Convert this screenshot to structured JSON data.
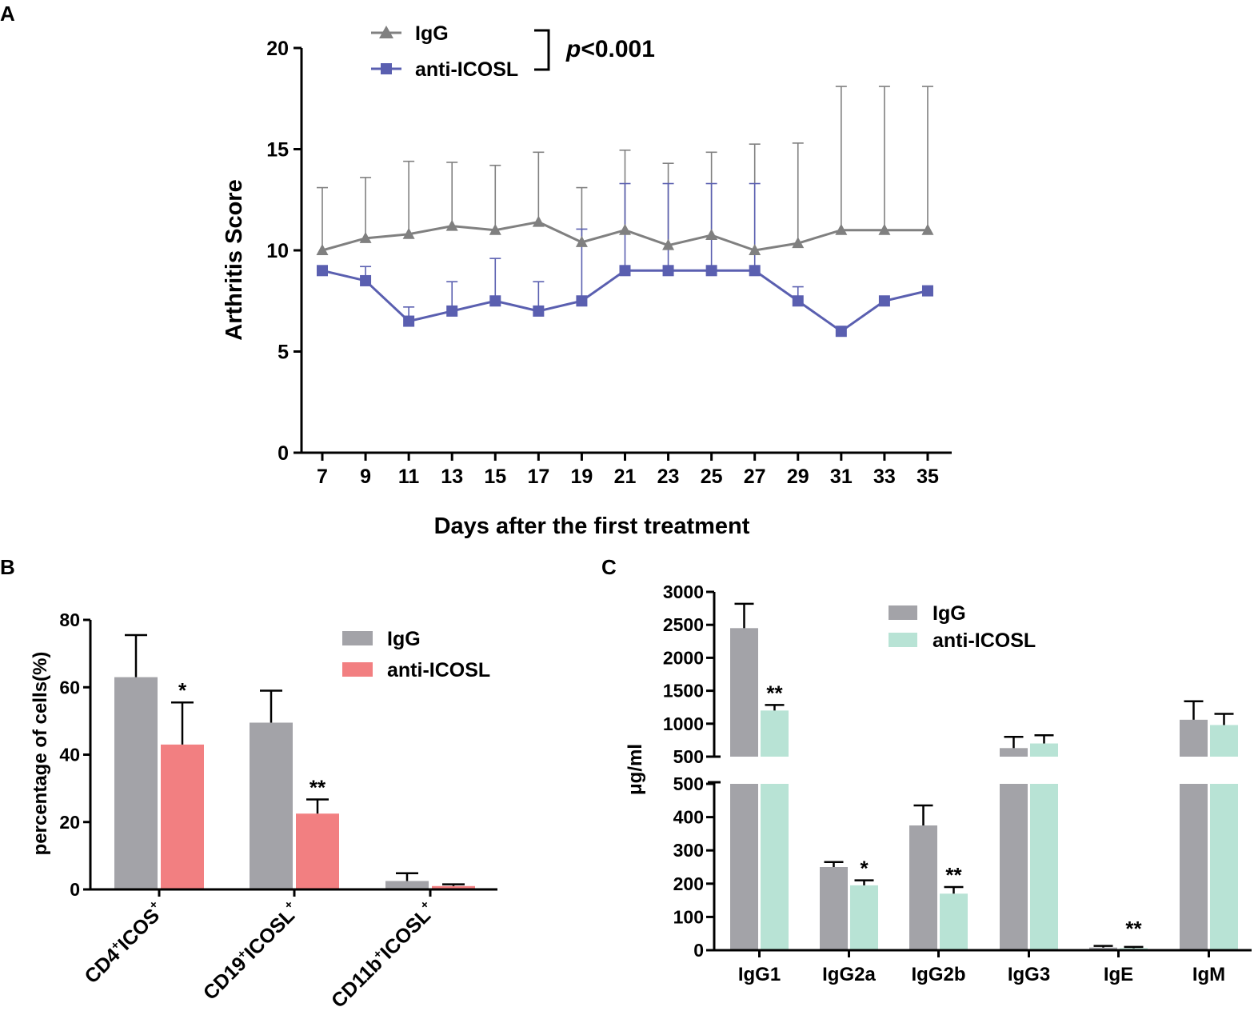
{
  "colors": {
    "igg_line": "#808080",
    "anti_line": "#5a5fb0",
    "igg_bar": "#a3a3a8",
    "anti_bar_b": "#f27f81",
    "anti_bar_c": "#b8e3d5"
  },
  "chart_data": [
    {
      "panel": "A",
      "type": "line",
      "xlabel": "Days after the first treatment",
      "ylabel": "Arthritis Score",
      "ylim": [
        0,
        20
      ],
      "yticks": [
        "0",
        "5",
        "10",
        "15",
        "20"
      ],
      "x": [
        7,
        9,
        11,
        13,
        15,
        17,
        19,
        21,
        23,
        25,
        27,
        29,
        31,
        33,
        35
      ],
      "xtick_labels": [
        "7",
        "9",
        "11",
        "13",
        "15",
        "17",
        "19",
        "21",
        "23",
        "25",
        "27",
        "29",
        "31",
        "33",
        "35"
      ],
      "annotation": "p<0.001",
      "annotation_p": "p",
      "annotation_rest": "<0.001",
      "series": [
        {
          "name": "IgG",
          "marker": "triangle",
          "values": [
            10,
            10.6,
            10.8,
            11.2,
            11,
            11.4,
            10.4,
            11,
            10.25,
            10.75,
            10,
            10.35,
            11,
            11,
            11
          ],
          "err_upper": [
            13.1,
            13.6,
            14.4,
            14.35,
            14.2,
            14.85,
            13.1,
            14.95,
            14.3,
            14.85,
            15.25,
            15.3,
            18.1,
            18.1,
            18.1
          ]
        },
        {
          "name": "anti-ICOSL",
          "marker": "square",
          "values": [
            9,
            8.5,
            6.5,
            7,
            7.5,
            7,
            7.5,
            9,
            9,
            9,
            9,
            7.5,
            6,
            7.5,
            8
          ],
          "err_upper": [
            9,
            9.2,
            7.2,
            8.45,
            9.6,
            8.45,
            11.05,
            13.3,
            13.3,
            13.3,
            13.3,
            8.2,
            6,
            7.5,
            8
          ]
        }
      ]
    },
    {
      "panel": "B",
      "type": "bar",
      "ylabel": "percentage of cells(%)",
      "ylim": [
        0,
        80
      ],
      "yticks": [
        "0",
        "20",
        "40",
        "60",
        "80"
      ],
      "categories": [
        {
          "base": "CD4",
          "sup": "+",
          "rest": "ICOS",
          "end": "+"
        },
        {
          "base": "CD19",
          "sup": "+",
          "rest": "ICOSL",
          "end": "+"
        },
        {
          "base": "CD11b",
          "sup": "+",
          "rest": "ICOSL",
          "end": "+"
        }
      ],
      "series": [
        {
          "name": "IgG",
          "values": [
            63,
            49.5,
            2.5
          ],
          "err": [
            12.5,
            9.5,
            2.3
          ]
        },
        {
          "name": "anti-ICOSL",
          "values": [
            43,
            22.5,
            1.0
          ],
          "err": [
            12.5,
            4.2,
            0.5
          ]
        }
      ],
      "significance": [
        "*",
        "**",
        ""
      ]
    },
    {
      "panel": "C",
      "type": "bar",
      "ylabel": "μg/ml",
      "broken_axis": true,
      "ylim_lower": [
        0,
        500
      ],
      "ylim_upper": [
        500,
        3000
      ],
      "yticks_lower": [
        "0",
        "100",
        "200",
        "300",
        "400",
        "500"
      ],
      "yticks_upper": [
        "500",
        "1000",
        "1500",
        "2000",
        "2500",
        "3000"
      ],
      "categories": [
        "IgG1",
        "IgG2a",
        "IgG2b",
        "IgG3",
        "IgE",
        "IgM"
      ],
      "series": [
        {
          "name": "IgG",
          "values": [
            2450,
            250,
            375,
            630,
            8,
            1060
          ],
          "err": [
            370,
            15,
            60,
            170,
            5,
            280
          ]
        },
        {
          "name": "anti-ICOSL",
          "values": [
            1200,
            195,
            170,
            700,
            6,
            980
          ],
          "err": [
            85,
            15,
            20,
            125,
            4,
            170
          ]
        }
      ],
      "significance": [
        "**",
        "*",
        "**",
        "",
        "**",
        ""
      ]
    }
  ],
  "panel_labels": [
    "A",
    "B",
    "C"
  ]
}
